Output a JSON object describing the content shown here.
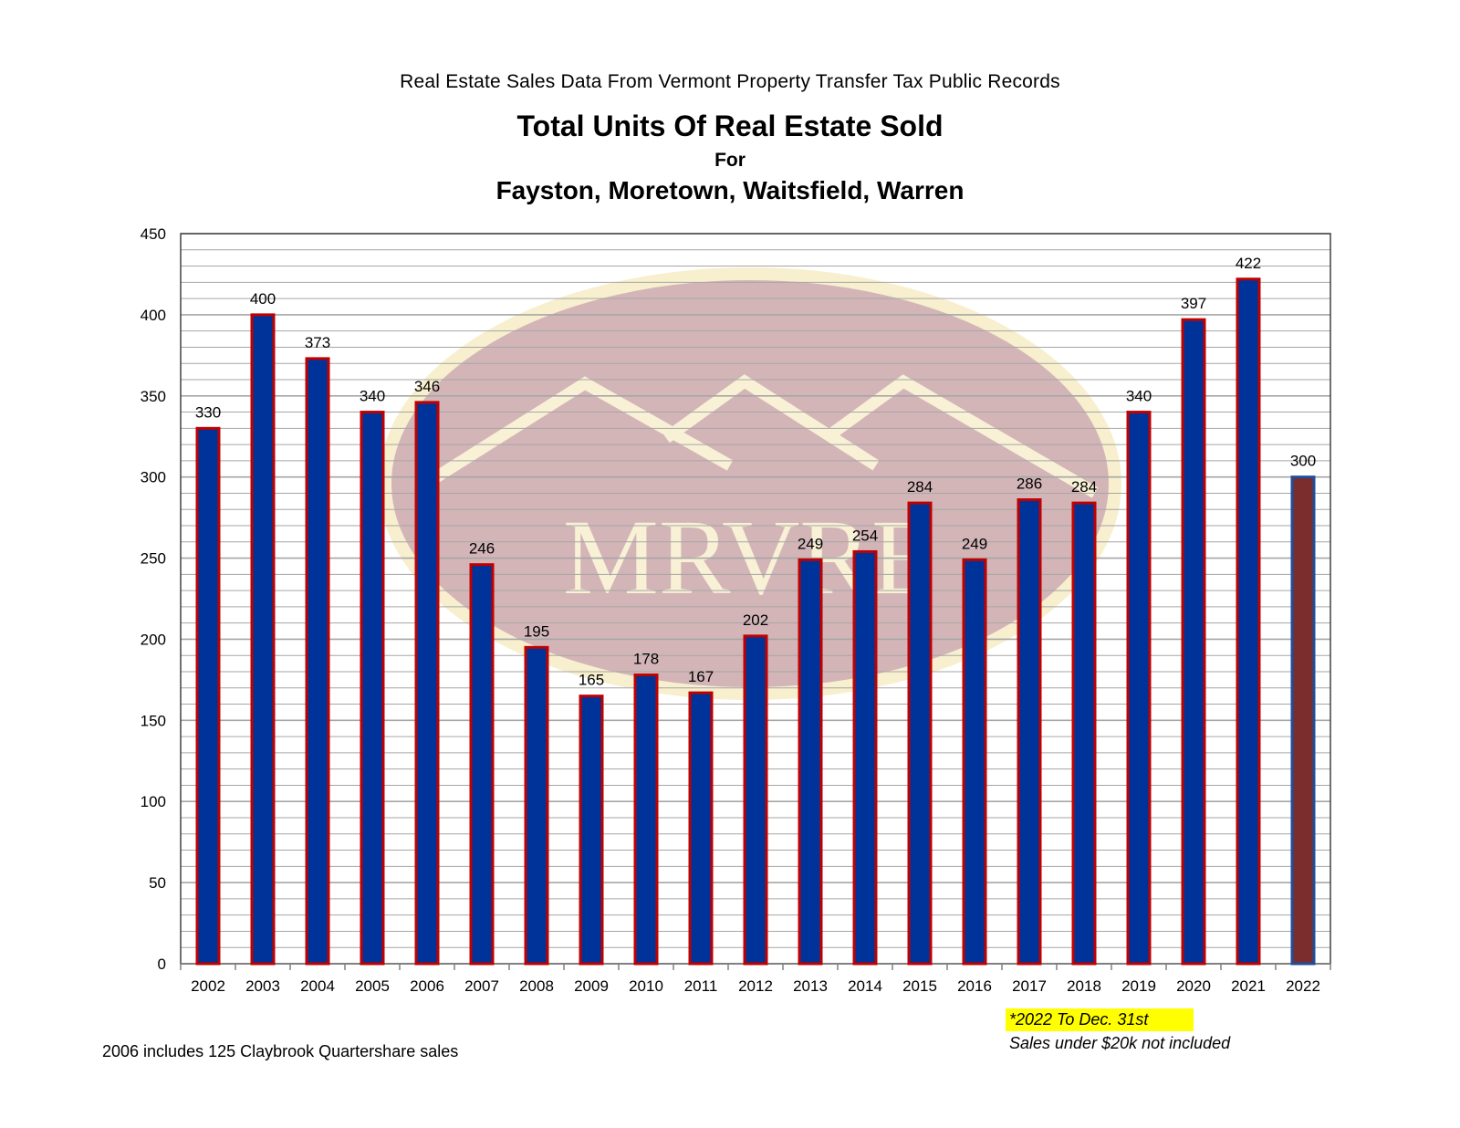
{
  "header": {
    "supertitle": "Real Estate Sales Data From Vermont Property Transfer Tax Public Records",
    "title": "Total Units Of Real Estate Sold",
    "subtitle_for": "For",
    "subtitle_towns": "Fayston, Moretown, Waitsfield, Warren"
  },
  "watermark": {
    "text": "MRVRE",
    "logo": "mountain-oval-logo"
  },
  "notes": {
    "claybrook": "2006 includes 125 Claybrook Quartershare sales",
    "period": "*2022 To Dec. 31st",
    "exclusion": "Sales under $20k not included"
  },
  "colors": {
    "bar_fill": "#003399",
    "bar_border": "#c00000",
    "highlight_bar_fill": "#7b2c2c",
    "highlight_bar_border": "#1f4e9a",
    "grid": "#a6a6a6",
    "note_highlight": "#ffff00"
  },
  "chart_data": {
    "type": "bar",
    "categories": [
      "2002",
      "2003",
      "2004",
      "2005",
      "2006",
      "2007",
      "2008",
      "2009",
      "2010",
      "2011",
      "2012",
      "2013",
      "2014",
      "2015",
      "2016",
      "2017",
      "2018",
      "2019",
      "2020",
      "2021",
      "2022"
    ],
    "values": [
      330,
      400,
      373,
      340,
      346,
      246,
      195,
      165,
      178,
      167,
      202,
      249,
      254,
      284,
      249,
      286,
      284,
      340,
      397,
      422,
      300
    ],
    "data_labels": [
      "330",
      "400",
      "373",
      "340",
      "346",
      "246",
      "195",
      "165",
      "178",
      "167",
      "202",
      "249",
      "254",
      "284",
      "249",
      "286",
      "284",
      "340",
      "397",
      "422",
      "300"
    ],
    "highlight_category": "2022",
    "ylim": [
      0,
      450
    ],
    "yticks": [
      0,
      50,
      100,
      150,
      200,
      250,
      300,
      350,
      400,
      450
    ],
    "minor_grid_step": 10,
    "grid": true,
    "xlabel": "",
    "ylabel": ""
  }
}
